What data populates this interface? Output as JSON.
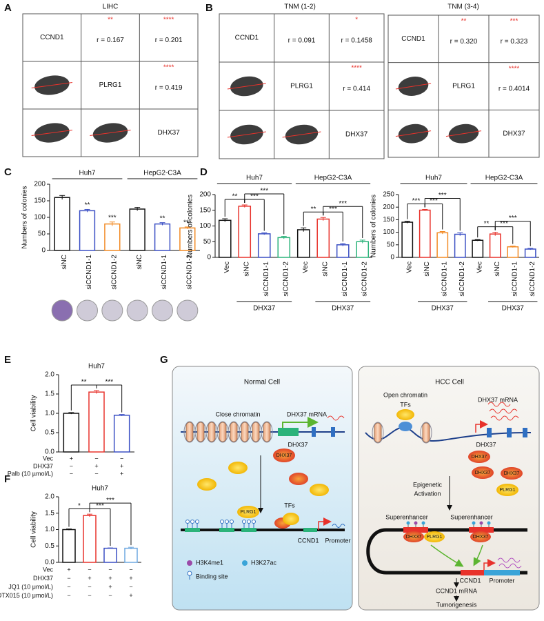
{
  "panel_labels": [
    "A",
    "B",
    "C",
    "D",
    "E",
    "F",
    "G"
  ],
  "correlation_matrices": [
    {
      "title": "LIHC",
      "genes": [
        "CCND1",
        "PLRG1",
        "DHX37"
      ],
      "upper": [
        [
          {
            "stars": "**",
            "r": "r = 0.167"
          },
          {
            "stars": "****",
            "r": "r = 0.201"
          }
        ],
        [
          {
            "stars": "****",
            "r": "r = 0.419"
          }
        ]
      ]
    },
    {
      "title": "TNM (1-2)",
      "genes": [
        "CCND1",
        "PLRG1",
        "DHX37"
      ],
      "upper": [
        [
          {
            "r": "r = 0.091"
          },
          {
            "stars": "*",
            "r": "r = 0.1458"
          }
        ],
        [
          {
            "stars": "****",
            "r": "r = 0.414"
          }
        ]
      ]
    },
    {
      "title": "TNM (3-4)",
      "genes": [
        "CCND1",
        "PLRG1",
        "DHX37"
      ],
      "upper": [
        [
          {
            "stars": "**",
            "r": "r = 0.320"
          },
          {
            "stars": "***",
            "r": "r = 0.323"
          }
        ],
        [
          {
            "stars": "****",
            "r": "r = 0.4014"
          }
        ]
      ]
    }
  ],
  "chart_data": [
    {
      "type": "bar",
      "ylabel": "Numbers of colonies",
      "categories": [
        "siNC",
        "siCCND1-1",
        "siCCND1-2",
        "siNC",
        "siCCND1-1",
        "siCCND1-2"
      ],
      "values": [
        160,
        120,
        80,
        125,
        80,
        68
      ],
      "errors": [
        6,
        4,
        6,
        5,
        4,
        3
      ],
      "colors": [
        "#111111",
        "#3a4fc4",
        "#f28a24",
        "#111111",
        "#3a4fc4",
        "#f28a24"
      ],
      "significance": [
        null,
        "**",
        "***",
        null,
        "**",
        "***"
      ],
      "groups": [
        {
          "name": "Huh7",
          "span": [
            0,
            2
          ]
        },
        {
          "name": "HepG2-C3A",
          "span": [
            3,
            5
          ]
        }
      ],
      "ylim": [
        0,
        200
      ],
      "yticks": [
        0,
        50,
        100,
        150,
        200
      ]
    },
    {
      "type": "bar",
      "ylabel": "Numbers of colonies",
      "categories": [
        "Vec",
        "siNC",
        "siCCND1-1",
        "siCCND1-2",
        "Vec",
        "siNC",
        "siCCND1-1",
        "siCCND1-2"
      ],
      "values": [
        118,
        163,
        75,
        63,
        88,
        122,
        40,
        50
      ],
      "errors": [
        5,
        4,
        3,
        4,
        6,
        5,
        4,
        5
      ],
      "colors": [
        "#111111",
        "#e8322b",
        "#3a4fc4",
        "#2bb37a",
        "#111111",
        "#e8322b",
        "#3a4fc4",
        "#2bb37a"
      ],
      "groups": [
        {
          "name": "Huh7",
          "span": [
            0,
            3
          ]
        },
        {
          "name": "HepG2-C3A",
          "span": [
            4,
            7
          ]
        }
      ],
      "sub_groups": [
        {
          "name": "DHX37",
          "span": [
            1,
            3
          ]
        },
        {
          "name": "DHX37",
          "span": [
            5,
            7
          ]
        }
      ],
      "comparisons": [
        {
          "from": 0,
          "to": 1,
          "label": "**"
        },
        {
          "from": 1,
          "to": 2,
          "label": "***"
        },
        {
          "from": 1,
          "to": 3,
          "label": "***"
        },
        {
          "from": 4,
          "to": 5,
          "label": "**"
        },
        {
          "from": 5,
          "to": 6,
          "label": "***"
        },
        {
          "from": 5,
          "to": 7,
          "label": "***"
        }
      ],
      "ylim": [
        0,
        200
      ],
      "yticks": [
        0,
        50,
        100,
        150,
        200
      ]
    },
    {
      "type": "bar",
      "ylabel": "Numbers of colonies",
      "categories": [
        "Vec",
        "siNC",
        "siCCND1-1",
        "siCCND1-2",
        "Vec",
        "siNC",
        "siCCND1-1",
        "siCCND1-2"
      ],
      "values": [
        140,
        188,
        98,
        92,
        68,
        93,
        42,
        33
      ],
      "errors": [
        4,
        3,
        5,
        6,
        3,
        7,
        3,
        3
      ],
      "colors": [
        "#111111",
        "#e8322b",
        "#f28a24",
        "#3a4fc4",
        "#111111",
        "#e8322b",
        "#f28a24",
        "#3a4fc4"
      ],
      "groups": [
        {
          "name": "Huh7",
          "span": [
            0,
            3
          ]
        },
        {
          "name": "HepG2-C3A",
          "span": [
            4,
            7
          ]
        }
      ],
      "sub_groups": [
        {
          "name": "DHX37",
          "span": [
            1,
            3
          ]
        },
        {
          "name": "DHX37",
          "span": [
            5,
            7
          ]
        }
      ],
      "comparisons": [
        {
          "from": 0,
          "to": 1,
          "label": "***"
        },
        {
          "from": 1,
          "to": 2,
          "label": "***"
        },
        {
          "from": 1,
          "to": 3,
          "label": "***"
        },
        {
          "from": 4,
          "to": 5,
          "label": "**"
        },
        {
          "from": 5,
          "to": 6,
          "label": "***"
        },
        {
          "from": 5,
          "to": 7,
          "label": "***"
        }
      ],
      "ylim": [
        0,
        250
      ],
      "yticks": [
        0,
        50,
        100,
        150,
        200,
        250
      ]
    },
    {
      "type": "bar",
      "title": "Huh7",
      "ylabel": "Cell viability",
      "values": [
        1.0,
        1.55,
        0.95
      ],
      "errors": [
        0.02,
        0.04,
        0.02
      ],
      "colors": [
        "#111111",
        "#e8322b",
        "#3a4fc4"
      ],
      "comparisons": [
        {
          "from": 0,
          "to": 1,
          "label": "**"
        },
        {
          "from": 1,
          "to": 2,
          "label": "***"
        }
      ],
      "conditions": [
        {
          "name": "Vec",
          "signs": [
            "+",
            "−",
            "−"
          ]
        },
        {
          "name": "DHX37",
          "signs": [
            "−",
            "+",
            "+"
          ]
        },
        {
          "name": "Palb (10 µmol/L)",
          "signs": [
            "−",
            "−",
            "+"
          ]
        }
      ],
      "ylim": [
        0,
        2
      ],
      "yticks": [
        {
          "value": 0,
          "label": "0.0"
        },
        {
          "value": 0.5,
          "label": "0.5"
        },
        {
          "value": 1,
          "label": "1.0"
        },
        {
          "value": 1.5,
          "label": "1.5"
        },
        {
          "value": 2,
          "label": "2.0"
        }
      ]
    },
    {
      "type": "bar",
      "title": "Huh7",
      "ylabel": "Cell viability",
      "values": [
        1.0,
        1.43,
        0.43,
        0.43
      ],
      "errors": [
        0.02,
        0.04,
        0.01,
        0.03
      ],
      "colors": [
        "#111111",
        "#e8322b",
        "#3a4fc4",
        "#6fa8e0"
      ],
      "comparisons": [
        {
          "from": 0,
          "to": 1,
          "label": "*"
        },
        {
          "from": 1,
          "to": 2,
          "label": "***"
        },
        {
          "from": 1,
          "to": 3,
          "label": "***"
        }
      ],
      "conditions": [
        {
          "name": "Vec",
          "signs": [
            "+",
            "−",
            "−",
            "−"
          ]
        },
        {
          "name": "DHX37",
          "signs": [
            "−",
            "+",
            "+",
            "+"
          ]
        },
        {
          "name": "JQ1 (10 μmol/L)",
          "signs": [
            "−",
            "−",
            "+",
            "−"
          ]
        },
        {
          "name": "OTX015 (10 μmol/L)",
          "signs": [
            "−",
            "−",
            "−",
            "+"
          ]
        }
      ],
      "ylim": [
        0,
        2
      ],
      "yticks": [
        {
          "value": 0,
          "label": "0.0"
        },
        {
          "value": 0.5,
          "label": "0.5"
        },
        {
          "value": 1,
          "label": "1.0"
        },
        {
          "value": 1.5,
          "label": "1.5"
        },
        {
          "value": 2,
          "label": "2.0"
        }
      ]
    }
  ],
  "diagram": {
    "normal": {
      "title": "Normal Cell",
      "chromatin": "Close chromatin",
      "mrna": "DHX37 mRNA",
      "gene": "DHX37",
      "protein": "DHX37",
      "cofactor": "PLRG1",
      "tfs": "TFs",
      "target": "CCND1",
      "promoter": "Promoter",
      "legend": [
        "H3K4me1",
        "H3K27ac",
        "Binding site"
      ]
    },
    "hcc": {
      "title": "HCC Cell",
      "chromatin": "Open chromatin",
      "tfs": "TFs",
      "mrna": "DHX37 mRNA",
      "gene": "DHX37",
      "proteins": [
        "DHX37",
        "DHX37",
        "DHX37"
      ],
      "cofactor": "PLRG1",
      "process": [
        "Epigenetic",
        "Activation"
      ],
      "enhancers": [
        "Superenhancer",
        "Superenhancer"
      ],
      "complex": [
        "DHX37",
        "PLRG1",
        "DHX37"
      ],
      "target": "CCND1",
      "promoter": "Promoter",
      "product": "CCND1 mRNA",
      "outcome": "Tumorigenesis"
    }
  }
}
